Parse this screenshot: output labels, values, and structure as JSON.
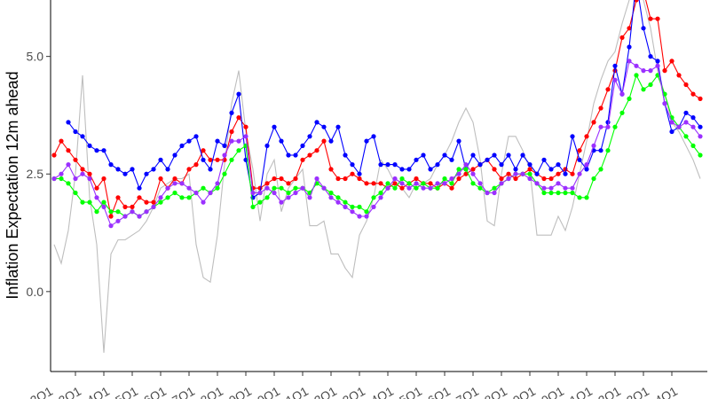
{
  "chart_data": {
    "type": "line",
    "title": "",
    "ylabel": "Inflation Expectation 12m ahead",
    "xlabel": "",
    "ylim": [
      -1.7,
      6.2
    ],
    "grid": false,
    "legend": "none",
    "y_ticks": [
      {
        "value": 0.0,
        "label": "0.0"
      },
      {
        "value": 2.5,
        "label": "2.5"
      },
      {
        "value": 5.0,
        "label": "5.0"
      }
    ],
    "x_ticks": [
      {
        "index": -1,
        "label": "2Q1"
      },
      {
        "index": 3,
        "label": "3Q1"
      },
      {
        "index": 7,
        "label": "4Q1"
      },
      {
        "index": 11,
        "label": "5Q1"
      },
      {
        "index": 15,
        "label": "6Q1"
      },
      {
        "index": 19,
        "label": "7Q1"
      },
      {
        "index": 23,
        "label": "8Q1"
      },
      {
        "index": 27,
        "label": "9Q1"
      },
      {
        "index": 31,
        "label": "0Q1"
      },
      {
        "index": 35,
        "label": "1Q1"
      },
      {
        "index": 39,
        "label": "2Q1"
      },
      {
        "index": 43,
        "label": "3Q1"
      },
      {
        "index": 47,
        "label": "4Q1"
      },
      {
        "index": 51,
        "label": "5Q1"
      },
      {
        "index": 55,
        "label": "6Q1"
      },
      {
        "index": 59,
        "label": "7Q1"
      },
      {
        "index": 63,
        "label": "8Q1"
      },
      {
        "index": 67,
        "label": "9Q1"
      },
      {
        "index": 71,
        "label": "0Q1"
      },
      {
        "index": 75,
        "label": "1Q1"
      },
      {
        "index": 79,
        "label": "2Q1"
      },
      {
        "index": 83,
        "label": "3Q1"
      },
      {
        "index": 87,
        "label": "4Q1"
      }
    ],
    "n_points": 92,
    "series": [
      {
        "color": "#ff0000",
        "markers": true,
        "values": [
          2.9,
          3.2,
          3.0,
          2.8,
          2.6,
          2.5,
          2.2,
          2.4,
          1.6,
          2.0,
          1.8,
          1.8,
          2.0,
          1.9,
          1.9,
          2.4,
          2.2,
          2.4,
          2.3,
          2.6,
          2.7,
          3.0,
          2.8,
          2.8,
          2.8,
          3.4,
          3.7,
          3.5,
          2.2,
          2.2,
          2.3,
          2.4,
          2.4,
          2.3,
          2.4,
          2.8,
          2.9,
          3.0,
          3.2,
          2.6,
          2.4,
          2.4,
          2.5,
          2.4,
          2.3,
          2.3,
          2.3,
          2.2,
          2.3,
          2.2,
          2.3,
          2.4,
          2.3,
          2.3,
          2.2,
          2.3,
          2.2,
          2.4,
          2.5,
          2.6,
          2.7,
          2.8,
          2.6,
          2.4,
          2.5,
          2.4,
          2.5,
          2.6,
          2.5,
          2.4,
          2.4,
          2.5,
          2.6,
          2.5,
          3.0,
          3.3,
          3.6,
          3.9,
          4.3,
          4.7,
          5.4,
          5.6,
          6.2,
          6.4,
          5.8,
          5.8,
          4.7,
          4.9,
          4.6,
          4.4,
          4.2,
          4.1
        ]
      },
      {
        "color": "#0000ff",
        "markers": true,
        "values": [
          null,
          null,
          3.6,
          3.4,
          3.3,
          3.1,
          3.0,
          3.0,
          2.7,
          2.6,
          2.5,
          2.6,
          2.2,
          2.5,
          2.6,
          2.8,
          2.6,
          2.9,
          3.1,
          3.2,
          3.3,
          2.8,
          2.6,
          3.2,
          3.1,
          3.8,
          4.2,
          2.8,
          2.0,
          2.1,
          3.1,
          3.5,
          3.2,
          2.9,
          2.9,
          3.1,
          3.3,
          3.6,
          3.5,
          3.2,
          3.5,
          2.9,
          2.7,
          2.5,
          3.2,
          3.3,
          2.7,
          2.7,
          2.7,
          2.6,
          2.6,
          2.8,
          2.9,
          2.6,
          2.7,
          2.9,
          2.8,
          3.2,
          2.6,
          2.9,
          2.7,
          2.8,
          2.9,
          2.7,
          2.9,
          2.6,
          2.9,
          2.7,
          2.5,
          2.8,
          2.6,
          2.7,
          2.5,
          3.3,
          2.8,
          2.6,
          3.0,
          3.0,
          3.6,
          4.8,
          4.2,
          5.2,
          6.6,
          5.6,
          5.0,
          4.9,
          4.0,
          3.4,
          3.5,
          3.8,
          3.7,
          3.5
        ]
      },
      {
        "color": "#00ff00",
        "markers": true,
        "values": [
          2.4,
          2.4,
          2.3,
          2.1,
          1.9,
          1.9,
          1.7,
          1.9,
          1.7,
          1.7,
          1.6,
          1.7,
          1.6,
          1.7,
          1.8,
          1.9,
          2.0,
          2.1,
          2.0,
          2.0,
          2.1,
          2.2,
          2.1,
          2.2,
          2.5,
          2.8,
          3.0,
          3.1,
          1.8,
          1.9,
          2.0,
          2.2,
          2.2,
          2.1,
          2.2,
          2.2,
          2.1,
          2.3,
          2.2,
          2.1,
          2.0,
          1.9,
          1.8,
          1.8,
          1.7,
          2.0,
          2.1,
          2.3,
          2.2,
          2.4,
          2.3,
          2.2,
          2.3,
          2.2,
          2.2,
          2.4,
          2.3,
          2.6,
          2.6,
          2.3,
          2.2,
          2.1,
          2.2,
          2.3,
          2.4,
          2.5,
          2.5,
          2.5,
          2.3,
          2.1,
          2.1,
          2.1,
          2.1,
          2.1,
          2.0,
          2.0,
          2.4,
          2.6,
          3.0,
          3.5,
          3.8,
          4.1,
          4.6,
          4.3,
          4.4,
          4.6,
          4.2,
          3.7,
          3.5,
          3.3,
          3.1,
          2.9
        ]
      },
      {
        "color": "#9b30ff",
        "markers": true,
        "values": [
          2.4,
          2.5,
          2.7,
          2.4,
          2.5,
          2.4,
          2.0,
          1.8,
          1.4,
          1.5,
          1.6,
          1.7,
          1.6,
          1.7,
          1.8,
          2.0,
          2.2,
          2.3,
          2.3,
          2.2,
          2.1,
          1.9,
          2.1,
          2.3,
          2.9,
          3.2,
          3.2,
          3.3,
          2.1,
          2.1,
          2.2,
          2.1,
          1.9,
          2.0,
          2.1,
          2.2,
          2.0,
          2.4,
          2.2,
          2.0,
          1.9,
          1.8,
          1.7,
          1.6,
          1.6,
          1.8,
          2.0,
          2.2,
          2.4,
          2.3,
          2.2,
          2.3,
          2.2,
          2.2,
          2.3,
          2.3,
          2.4,
          2.5,
          2.7,
          2.5,
          2.3,
          2.1,
          2.1,
          2.3,
          2.4,
          2.5,
          2.5,
          2.4,
          2.3,
          2.2,
          2.2,
          2.3,
          2.2,
          2.2,
          2.5,
          2.7,
          3.1,
          3.5,
          3.5,
          4.5,
          4.2,
          4.9,
          4.8,
          4.7,
          4.7,
          4.8,
          4.0,
          3.6,
          3.5,
          3.6,
          3.5,
          3.3
        ]
      },
      {
        "color": "#bebebe",
        "markers": false,
        "values": [
          1.0,
          0.6,
          1.3,
          2.5,
          4.6,
          2.0,
          1.0,
          -1.3,
          0.8,
          1.1,
          1.1,
          1.2,
          1.3,
          1.5,
          1.8,
          2.2,
          2.3,
          2.4,
          2.4,
          2.5,
          1.0,
          0.3,
          0.2,
          1.2,
          2.7,
          4.0,
          4.7,
          3.4,
          2.6,
          1.5,
          2.5,
          2.8,
          1.7,
          2.2,
          2.4,
          2.6,
          1.4,
          1.4,
          1.5,
          0.8,
          0.8,
          0.5,
          0.3,
          1.2,
          1.5,
          2.0,
          2.8,
          2.6,
          2.3,
          2.2,
          2.0,
          2.3,
          2.3,
          2.4,
          2.7,
          2.9,
          3.2,
          3.6,
          3.9,
          3.6,
          2.8,
          1.5,
          1.4,
          2.5,
          3.3,
          3.3,
          3.0,
          2.6,
          1.2,
          1.2,
          1.2,
          1.6,
          1.3,
          1.8,
          2.5,
          3.2,
          4.0,
          4.5,
          4.9,
          5.1,
          5.7,
          6.2,
          6.8,
          6.2,
          5.6,
          4.7,
          4.2,
          3.6,
          3.4,
          3.1,
          2.8,
          2.4
        ]
      }
    ]
  }
}
